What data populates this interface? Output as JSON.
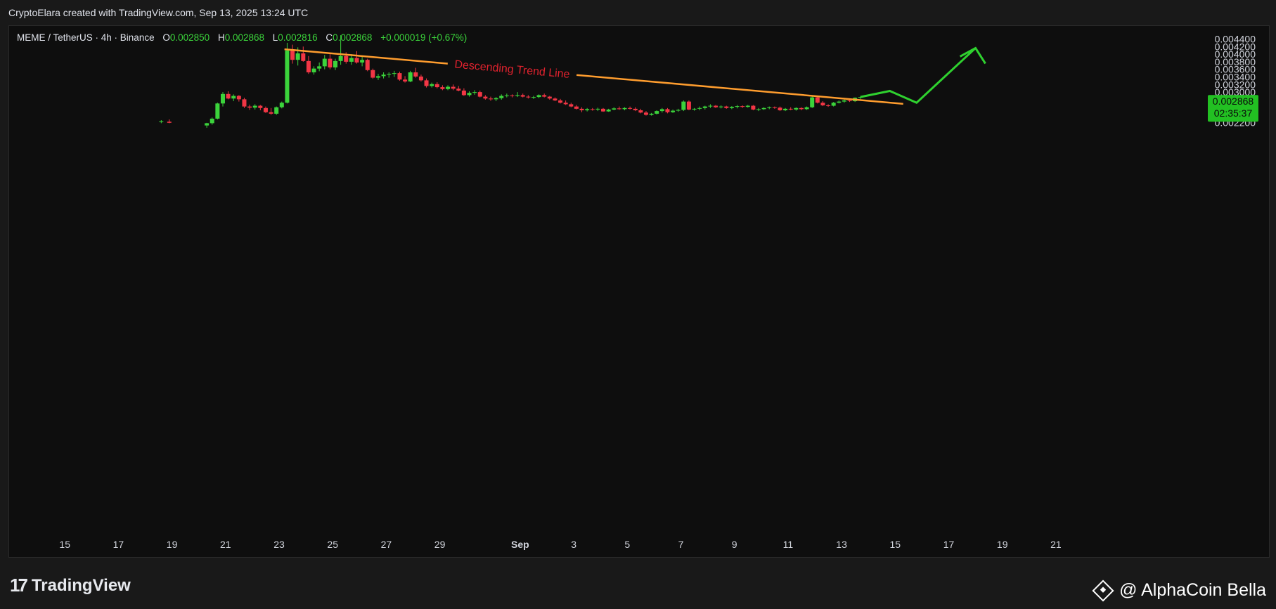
{
  "header": {
    "credit": "CryptoElara created with TradingView.com, Sep 13, 2025 13:24 UTC"
  },
  "legend": {
    "symbol": "MEME / TetherUS · 4h · Binance",
    "o_label": "O",
    "o": "0.002850",
    "h_label": "H",
    "h": "0.002868",
    "l_label": "L",
    "l": "0.002816",
    "c_label": "C",
    "c": "0.002868",
    "change": "+0.000019 (+0.67%)"
  },
  "price_badge": {
    "price": "0.002868",
    "countdown": "02:35:37"
  },
  "annotation": {
    "trendline_label": "Descending Trend Line"
  },
  "footer": {
    "logo_text": "TradingView",
    "author": "@ AlphaCoin Bella"
  },
  "colors": {
    "up": "#3bd33b",
    "down": "#f23645",
    "trendline": "#ff9d2e",
    "projection": "#2fd12f",
    "label_red": "#e0222e",
    "badge": "#22c022"
  },
  "chart_data": {
    "type": "candlestick",
    "ylim": [
      0.0022,
      0.0045
    ],
    "y_ticks": [
      "0.004400",
      "0.004200",
      "0.004000",
      "0.003800",
      "0.003600",
      "0.003400",
      "0.003200",
      "0.003000",
      "0.002800",
      "0.002600",
      "0.002400",
      "0.002200"
    ],
    "x_ticks": [
      "15",
      "17",
      "19",
      "21",
      "23",
      "25",
      "27",
      "29",
      "Sep",
      "3",
      "5",
      "7",
      "9",
      "11",
      "13",
      "15",
      "17",
      "19",
      "21"
    ],
    "x_tick_days": [
      15,
      17,
      19,
      21,
      23,
      25,
      27,
      29,
      32,
      34,
      36,
      38,
      40,
      42,
      44,
      46,
      48,
      50,
      52
    ],
    "x_unit": "day of Aug 2025 (Sep 1 = 32)",
    "candles": [
      {
        "t": 18.6,
        "o": 0.00221,
        "h": 0.00226,
        "l": 0.00218,
        "c": 0.00223
      },
      {
        "t": 18.9,
        "o": 0.00222,
        "h": 0.00228,
        "l": 0.00218,
        "c": 0.00219
      },
      {
        "t": 20.3,
        "o": 0.00212,
        "h": 0.00219,
        "l": 0.00206,
        "c": 0.00218
      },
      {
        "t": 20.5,
        "o": 0.00218,
        "h": 0.00233,
        "l": 0.00214,
        "c": 0.0023
      },
      {
        "t": 20.7,
        "o": 0.0023,
        "h": 0.00272,
        "l": 0.00228,
        "c": 0.0027
      },
      {
        "t": 20.9,
        "o": 0.0027,
        "h": 0.003,
        "l": 0.00262,
        "c": 0.00295
      },
      {
        "t": 21.1,
        "o": 0.00295,
        "h": 0.00302,
        "l": 0.00281,
        "c": 0.00283
      },
      {
        "t": 21.3,
        "o": 0.00283,
        "h": 0.00294,
        "l": 0.00276,
        "c": 0.0029
      },
      {
        "t": 21.5,
        "o": 0.0029,
        "h": 0.00292,
        "l": 0.00275,
        "c": 0.00281
      },
      {
        "t": 21.7,
        "o": 0.00281,
        "h": 0.00285,
        "l": 0.00258,
        "c": 0.00262
      },
      {
        "t": 21.9,
        "o": 0.00262,
        "h": 0.00267,
        "l": 0.00253,
        "c": 0.00259
      },
      {
        "t": 22.1,
        "o": 0.00259,
        "h": 0.00268,
        "l": 0.00254,
        "c": 0.00264
      },
      {
        "t": 22.3,
        "o": 0.00264,
        "h": 0.00266,
        "l": 0.00252,
        "c": 0.00258
      },
      {
        "t": 22.5,
        "o": 0.00258,
        "h": 0.00262,
        "l": 0.00245,
        "c": 0.00247
      },
      {
        "t": 22.7,
        "o": 0.00247,
        "h": 0.00258,
        "l": 0.0024,
        "c": 0.00243
      },
      {
        "t": 22.9,
        "o": 0.00243,
        "h": 0.00262,
        "l": 0.0024,
        "c": 0.0026
      },
      {
        "t": 23.1,
        "o": 0.0026,
        "h": 0.00275,
        "l": 0.00257,
        "c": 0.00272
      },
      {
        "t": 23.3,
        "o": 0.00272,
        "h": 0.0043,
        "l": 0.0027,
        "c": 0.0041
      },
      {
        "t": 23.5,
        "o": 0.0041,
        "h": 0.00425,
        "l": 0.00375,
        "c": 0.00385
      },
      {
        "t": 23.7,
        "o": 0.00385,
        "h": 0.00418,
        "l": 0.0037,
        "c": 0.00402
      },
      {
        "t": 23.9,
        "o": 0.00402,
        "h": 0.0042,
        "l": 0.0038,
        "c": 0.00382
      },
      {
        "t": 24.1,
        "o": 0.00382,
        "h": 0.00395,
        "l": 0.00348,
        "c": 0.00352
      },
      {
        "t": 24.3,
        "o": 0.00352,
        "h": 0.00368,
        "l": 0.00346,
        "c": 0.00362
      },
      {
        "t": 24.5,
        "o": 0.00362,
        "h": 0.00378,
        "l": 0.00355,
        "c": 0.00368
      },
      {
        "t": 24.7,
        "o": 0.00368,
        "h": 0.00398,
        "l": 0.0036,
        "c": 0.00388
      },
      {
        "t": 24.9,
        "o": 0.00388,
        "h": 0.004,
        "l": 0.0036,
        "c": 0.00365
      },
      {
        "t": 25.1,
        "o": 0.00365,
        "h": 0.00388,
        "l": 0.00358,
        "c": 0.00382
      },
      {
        "t": 25.3,
        "o": 0.00382,
        "h": 0.0045,
        "l": 0.00372,
        "c": 0.00395
      },
      {
        "t": 25.5,
        "o": 0.00395,
        "h": 0.00405,
        "l": 0.00375,
        "c": 0.0038
      },
      {
        "t": 25.7,
        "o": 0.0038,
        "h": 0.004,
        "l": 0.00372,
        "c": 0.0039
      },
      {
        "t": 25.9,
        "o": 0.0039,
        "h": 0.00408,
        "l": 0.00375,
        "c": 0.00378
      },
      {
        "t": 26.1,
        "o": 0.00378,
        "h": 0.00395,
        "l": 0.00368,
        "c": 0.00385
      },
      {
        "t": 26.3,
        "o": 0.00385,
        "h": 0.00388,
        "l": 0.00355,
        "c": 0.00358
      },
      {
        "t": 26.5,
        "o": 0.00358,
        "h": 0.00362,
        "l": 0.00335,
        "c": 0.00338
      },
      {
        "t": 26.7,
        "o": 0.00338,
        "h": 0.00348,
        "l": 0.00332,
        "c": 0.00342
      },
      {
        "t": 26.9,
        "o": 0.00342,
        "h": 0.00352,
        "l": 0.00336,
        "c": 0.00346
      },
      {
        "t": 27.1,
        "o": 0.00346,
        "h": 0.00352,
        "l": 0.00338,
        "c": 0.00348
      },
      {
        "t": 27.3,
        "o": 0.00348,
        "h": 0.00356,
        "l": 0.0034,
        "c": 0.0035
      },
      {
        "t": 27.5,
        "o": 0.0035,
        "h": 0.00354,
        "l": 0.0033,
        "c": 0.00333
      },
      {
        "t": 27.7,
        "o": 0.00333,
        "h": 0.00342,
        "l": 0.00325,
        "c": 0.00328
      },
      {
        "t": 27.9,
        "o": 0.00328,
        "h": 0.00356,
        "l": 0.00326,
        "c": 0.00352
      },
      {
        "t": 28.1,
        "o": 0.00352,
        "h": 0.00364,
        "l": 0.00338,
        "c": 0.00341
      },
      {
        "t": 28.3,
        "o": 0.00341,
        "h": 0.00346,
        "l": 0.00328,
        "c": 0.00331
      },
      {
        "t": 28.5,
        "o": 0.00331,
        "h": 0.00336,
        "l": 0.00312,
        "c": 0.00316
      },
      {
        "t": 28.7,
        "o": 0.00316,
        "h": 0.00325,
        "l": 0.00312,
        "c": 0.00321
      },
      {
        "t": 28.9,
        "o": 0.00321,
        "h": 0.00326,
        "l": 0.0031,
        "c": 0.00313
      },
      {
        "t": 29.1,
        "o": 0.00313,
        "h": 0.00318,
        "l": 0.00305,
        "c": 0.00308
      },
      {
        "t": 29.3,
        "o": 0.00308,
        "h": 0.00318,
        "l": 0.00305,
        "c": 0.00314
      },
      {
        "t": 29.5,
        "o": 0.00314,
        "h": 0.0032,
        "l": 0.00305,
        "c": 0.00309
      },
      {
        "t": 29.7,
        "o": 0.00309,
        "h": 0.00316,
        "l": 0.00302,
        "c": 0.00304
      },
      {
        "t": 29.9,
        "o": 0.00304,
        "h": 0.0031,
        "l": 0.0029,
        "c": 0.00292
      },
      {
        "t": 30.1,
        "o": 0.00292,
        "h": 0.00302,
        "l": 0.00288,
        "c": 0.00298
      },
      {
        "t": 30.3,
        "o": 0.00298,
        "h": 0.00305,
        "l": 0.00293,
        "c": 0.003
      },
      {
        "t": 30.5,
        "o": 0.003,
        "h": 0.00304,
        "l": 0.00286,
        "c": 0.00288
      },
      {
        "t": 30.7,
        "o": 0.00288,
        "h": 0.00292,
        "l": 0.0028,
        "c": 0.00283
      },
      {
        "t": 30.9,
        "o": 0.00283,
        "h": 0.00288,
        "l": 0.00277,
        "c": 0.00281
      },
      {
        "t": 31.1,
        "o": 0.00281,
        "h": 0.00287,
        "l": 0.00276,
        "c": 0.00284
      },
      {
        "t": 31.3,
        "o": 0.00284,
        "h": 0.00294,
        "l": 0.0028,
        "c": 0.0029
      },
      {
        "t": 31.5,
        "o": 0.0029,
        "h": 0.00296,
        "l": 0.00286,
        "c": 0.00291
      },
      {
        "t": 31.7,
        "o": 0.00291,
        "h": 0.00294,
        "l": 0.00286,
        "c": 0.0029
      },
      {
        "t": 31.9,
        "o": 0.0029,
        "h": 0.003,
        "l": 0.00287,
        "c": 0.00292
      },
      {
        "t": 32.1,
        "o": 0.00292,
        "h": 0.00296,
        "l": 0.00286,
        "c": 0.00288
      },
      {
        "t": 32.3,
        "o": 0.00288,
        "h": 0.00292,
        "l": 0.00283,
        "c": 0.00286
      },
      {
        "t": 32.5,
        "o": 0.00286,
        "h": 0.0029,
        "l": 0.00282,
        "c": 0.00287
      },
      {
        "t": 32.7,
        "o": 0.00287,
        "h": 0.00294,
        "l": 0.00284,
        "c": 0.00292
      },
      {
        "t": 32.9,
        "o": 0.00292,
        "h": 0.00296,
        "l": 0.00286,
        "c": 0.00288
      },
      {
        "t": 33.1,
        "o": 0.00288,
        "h": 0.0029,
        "l": 0.0028,
        "c": 0.00283
      },
      {
        "t": 33.3,
        "o": 0.00283,
        "h": 0.00286,
        "l": 0.00276,
        "c": 0.00278
      },
      {
        "t": 33.5,
        "o": 0.00278,
        "h": 0.00282,
        "l": 0.0027,
        "c": 0.00272
      },
      {
        "t": 33.7,
        "o": 0.00272,
        "h": 0.00278,
        "l": 0.00266,
        "c": 0.00268
      },
      {
        "t": 33.9,
        "o": 0.00268,
        "h": 0.00272,
        "l": 0.0026,
        "c": 0.00262
      },
      {
        "t": 34.1,
        "o": 0.00262,
        "h": 0.00266,
        "l": 0.00254,
        "c": 0.00256
      },
      {
        "t": 34.3,
        "o": 0.00256,
        "h": 0.0026,
        "l": 0.00247,
        "c": 0.00252
      },
      {
        "t": 34.5,
        "o": 0.00252,
        "h": 0.00258,
        "l": 0.00249,
        "c": 0.00255
      },
      {
        "t": 34.7,
        "o": 0.00255,
        "h": 0.00258,
        "l": 0.00251,
        "c": 0.00254
      },
      {
        "t": 34.9,
        "o": 0.00254,
        "h": 0.00259,
        "l": 0.0025,
        "c": 0.00256
      },
      {
        "t": 35.1,
        "o": 0.00256,
        "h": 0.00258,
        "l": 0.00248,
        "c": 0.00249
      },
      {
        "t": 35.3,
        "o": 0.00249,
        "h": 0.00256,
        "l": 0.00248,
        "c": 0.00254
      },
      {
        "t": 35.5,
        "o": 0.00254,
        "h": 0.0026,
        "l": 0.00252,
        "c": 0.00257
      },
      {
        "t": 35.7,
        "o": 0.00257,
        "h": 0.00262,
        "l": 0.00253,
        "c": 0.00255
      },
      {
        "t": 35.9,
        "o": 0.00255,
        "h": 0.0026,
        "l": 0.00252,
        "c": 0.00258
      },
      {
        "t": 36.1,
        "o": 0.00258,
        "h": 0.00262,
        "l": 0.00254,
        "c": 0.00256
      },
      {
        "t": 36.3,
        "o": 0.00256,
        "h": 0.0026,
        "l": 0.0025,
        "c": 0.00252
      },
      {
        "t": 36.5,
        "o": 0.00252,
        "h": 0.00256,
        "l": 0.00244,
        "c": 0.00246
      },
      {
        "t": 36.7,
        "o": 0.00246,
        "h": 0.0025,
        "l": 0.00238,
        "c": 0.0024
      },
      {
        "t": 36.9,
        "o": 0.0024,
        "h": 0.00245,
        "l": 0.00238,
        "c": 0.00243
      },
      {
        "t": 37.1,
        "o": 0.00243,
        "h": 0.00252,
        "l": 0.00241,
        "c": 0.0025
      },
      {
        "t": 37.3,
        "o": 0.0025,
        "h": 0.00258,
        "l": 0.00246,
        "c": 0.00255
      },
      {
        "t": 37.5,
        "o": 0.00255,
        "h": 0.00258,
        "l": 0.00244,
        "c": 0.00247
      },
      {
        "t": 37.7,
        "o": 0.00247,
        "h": 0.00254,
        "l": 0.00245,
        "c": 0.00251
      },
      {
        "t": 37.9,
        "o": 0.00251,
        "h": 0.00256,
        "l": 0.00248,
        "c": 0.00253
      },
      {
        "t": 38.1,
        "o": 0.00253,
        "h": 0.00278,
        "l": 0.0025,
        "c": 0.00275
      },
      {
        "t": 38.3,
        "o": 0.00275,
        "h": 0.00278,
        "l": 0.00252,
        "c": 0.00254
      },
      {
        "t": 38.5,
        "o": 0.00254,
        "h": 0.00258,
        "l": 0.00251,
        "c": 0.00256
      },
      {
        "t": 38.7,
        "o": 0.00256,
        "h": 0.00262,
        "l": 0.00252,
        "c": 0.00258
      },
      {
        "t": 38.9,
        "o": 0.00258,
        "h": 0.00264,
        "l": 0.00254,
        "c": 0.00262
      },
      {
        "t": 39.1,
        "o": 0.00262,
        "h": 0.00268,
        "l": 0.00258,
        "c": 0.00264
      },
      {
        "t": 39.3,
        "o": 0.00264,
        "h": 0.00266,
        "l": 0.00258,
        "c": 0.0026
      },
      {
        "t": 39.5,
        "o": 0.0026,
        "h": 0.00265,
        "l": 0.00257,
        "c": 0.00262
      },
      {
        "t": 39.7,
        "o": 0.00262,
        "h": 0.00264,
        "l": 0.00256,
        "c": 0.00258
      },
      {
        "t": 39.9,
        "o": 0.00258,
        "h": 0.00263,
        "l": 0.00255,
        "c": 0.00261
      },
      {
        "t": 40.1,
        "o": 0.00261,
        "h": 0.00266,
        "l": 0.00257,
        "c": 0.00263
      },
      {
        "t": 40.3,
        "o": 0.00263,
        "h": 0.00265,
        "l": 0.00258,
        "c": 0.00261
      },
      {
        "t": 40.5,
        "o": 0.00261,
        "h": 0.00266,
        "l": 0.00259,
        "c": 0.00264
      },
      {
        "t": 40.7,
        "o": 0.00264,
        "h": 0.00266,
        "l": 0.00252,
        "c": 0.00254
      },
      {
        "t": 40.9,
        "o": 0.00254,
        "h": 0.00258,
        "l": 0.0025,
        "c": 0.00255
      },
      {
        "t": 41.1,
        "o": 0.00255,
        "h": 0.0026,
        "l": 0.00253,
        "c": 0.00258
      },
      {
        "t": 41.3,
        "o": 0.00258,
        "h": 0.00262,
        "l": 0.00255,
        "c": 0.0026
      },
      {
        "t": 41.5,
        "o": 0.0026,
        "h": 0.00262,
        "l": 0.00256,
        "c": 0.00259
      },
      {
        "t": 41.7,
        "o": 0.00259,
        "h": 0.00262,
        "l": 0.0025,
        "c": 0.00252
      },
      {
        "t": 41.9,
        "o": 0.00252,
        "h": 0.00258,
        "l": 0.0025,
        "c": 0.00256
      },
      {
        "t": 42.1,
        "o": 0.00256,
        "h": 0.0026,
        "l": 0.00252,
        "c": 0.00254
      },
      {
        "t": 42.3,
        "o": 0.00254,
        "h": 0.0026,
        "l": 0.00251,
        "c": 0.00258
      },
      {
        "t": 42.5,
        "o": 0.00258,
        "h": 0.0026,
        "l": 0.00252,
        "c": 0.00255
      },
      {
        "t": 42.7,
        "o": 0.00255,
        "h": 0.00262,
        "l": 0.00253,
        "c": 0.0026
      },
      {
        "t": 42.9,
        "o": 0.0026,
        "h": 0.0029,
        "l": 0.00258,
        "c": 0.00286
      },
      {
        "t": 43.1,
        "o": 0.00286,
        "h": 0.00288,
        "l": 0.0027,
        "c": 0.00272
      },
      {
        "t": 43.3,
        "o": 0.00272,
        "h": 0.00276,
        "l": 0.00263,
        "c": 0.00265
      },
      {
        "t": 43.5,
        "o": 0.00265,
        "h": 0.00268,
        "l": 0.00261,
        "c": 0.00264
      },
      {
        "t": 43.7,
        "o": 0.00264,
        "h": 0.00274,
        "l": 0.00262,
        "c": 0.00272
      },
      {
        "t": 43.9,
        "o": 0.00272,
        "h": 0.00278,
        "l": 0.0027,
        "c": 0.00275
      },
      {
        "t": 44.1,
        "o": 0.00275,
        "h": 0.00283,
        "l": 0.00272,
        "c": 0.00278
      },
      {
        "t": 44.3,
        "o": 0.00278,
        "h": 0.00282,
        "l": 0.00274,
        "c": 0.00276
      },
      {
        "t": 44.5,
        "o": 0.00276,
        "h": 0.00286,
        "l": 0.00274,
        "c": 0.00285
      },
      {
        "t": 44.7,
        "o": 0.00285,
        "h": 0.00287,
        "l": 0.00282,
        "c": 0.00287
      }
    ],
    "trendline": [
      [
        23.2,
        0.00413
      ],
      [
        46.3,
        0.00269
      ]
    ],
    "projection": [
      [
        44.7,
        0.00287
      ],
      [
        45.8,
        0.00303
      ],
      [
        46.8,
        0.00272
      ],
      [
        49.0,
        0.00416
      ]
    ]
  }
}
